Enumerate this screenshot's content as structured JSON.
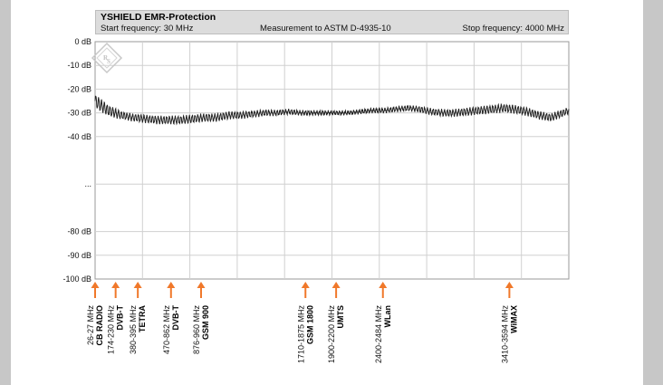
{
  "header": {
    "title": "YSHIELD  EMR-Protection",
    "start": "Start frequency: 30 MHz",
    "measurement": "Measurement to ASTM D-4935-10",
    "stop": "Stop frequency: 4000 MHz"
  },
  "chart_data": {
    "type": "line",
    "title": "YSHIELD  EMR-Protection",
    "x_range_mhz": [
      30,
      4000
    ],
    "ylim": [
      -100,
      0
    ],
    "grid": true,
    "y_ticks": [
      {
        "value": 0,
        "label": "0 dB"
      },
      {
        "value": -10,
        "label": "-10 dB"
      },
      {
        "value": -20,
        "label": "-20 dB"
      },
      {
        "value": -30,
        "label": "-30 dB"
      },
      {
        "value": -40,
        "label": "-40 dB"
      },
      {
        "value": -60,
        "label": "..."
      },
      {
        "value": -80,
        "label": "-80 dB"
      },
      {
        "value": -90,
        "label": "-90 dB"
      },
      {
        "value": -100,
        "label": "-100 dB"
      }
    ],
    "series": [
      {
        "color": "#222222",
        "x": [
          30,
          140,
          250,
          350,
          450,
          550,
          650,
          750,
          850,
          950,
          1050,
          1150,
          1250,
          1350,
          1450,
          1550,
          1650,
          1750,
          1850,
          1950,
          2050,
          2150,
          2250,
          2350,
          2450,
          2550,
          2650,
          2750,
          2850,
          2950,
          3050,
          3150,
          3250,
          3350,
          3450,
          3550,
          3650,
          3750,
          3850,
          3950,
          4000
        ],
        "y": [
          -25,
          -29,
          -31,
          -32,
          -32.5,
          -33,
          -33,
          -33,
          -32.5,
          -32,
          -32,
          -31,
          -31,
          -30.5,
          -30,
          -30,
          -29.5,
          -30,
          -30,
          -30,
          -30,
          -30,
          -29.5,
          -29,
          -29,
          -28.5,
          -28,
          -28.5,
          -29.5,
          -30,
          -30,
          -29.5,
          -29,
          -28.5,
          -28,
          -28.5,
          -29.5,
          -31,
          -32,
          -30,
          -29
        ]
      }
    ],
    "bands": [
      {
        "mhz": 27,
        "range": "26-27 MHz",
        "name": "CB RADIO"
      },
      {
        "mhz": 202,
        "range": "174-230 MHz",
        "name": "DVB-T"
      },
      {
        "mhz": 388,
        "range": "380-395 MHz",
        "name": "TETRA"
      },
      {
        "mhz": 666,
        "range": "470-862 MHz",
        "name": "DVB-T"
      },
      {
        "mhz": 918,
        "range": "876-960 MHz",
        "name": "GSM 900"
      },
      {
        "mhz": 1793,
        "range": "1710-1875 MHz",
        "name": "GSM 1800"
      },
      {
        "mhz": 2050,
        "range": "1900-2200 MHz",
        "name": "UMTS"
      },
      {
        "mhz": 2442,
        "range": "2400-2484 MHz",
        "name": "WLan"
      },
      {
        "mhz": 3502,
        "range": "3410-3594 MHz",
        "name": "WiMAX"
      }
    ],
    "colors": {
      "arrow": "#f0782a",
      "grid": "#d0d0d0",
      "trace": "#222222"
    }
  }
}
